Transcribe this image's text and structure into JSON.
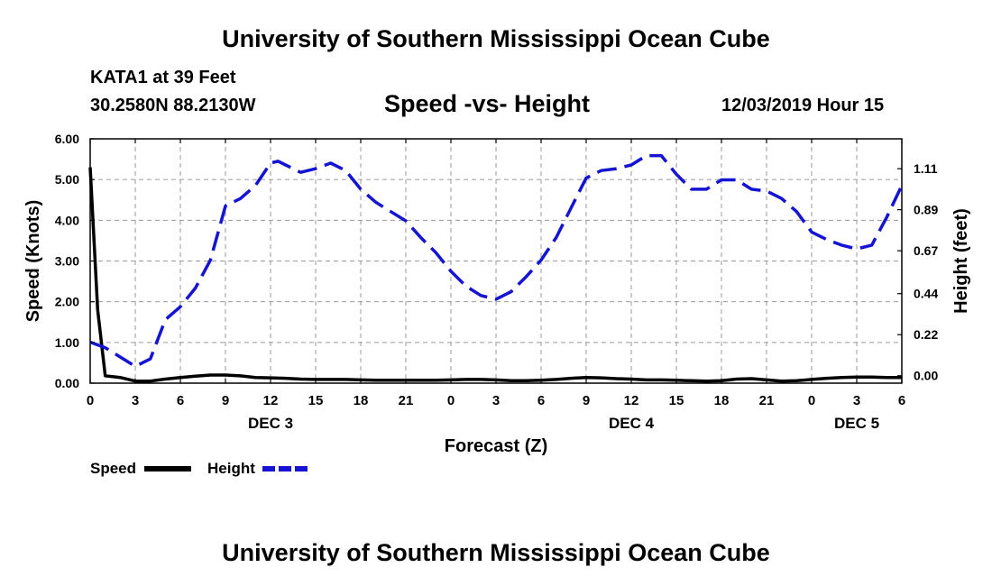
{
  "header": {
    "title": "University of Southern Mississippi Ocean Cube",
    "station": "KATA1 at 39 Feet",
    "coordinates": "30.2580N 88.2130W",
    "datetime": "12/03/2019 Hour 15"
  },
  "footer": {
    "title": "University of Southern Mississippi Ocean Cube"
  },
  "chart_data": {
    "type": "line",
    "title": "Speed -vs- Height",
    "xlabel": "Forecast (Z)",
    "ylabel": "Speed (Knots)",
    "y2label": "Height (feet)",
    "x_unit": "hours from start",
    "xlim": [
      0,
      54
    ],
    "ylim": [
      0,
      6
    ],
    "y2lim": [
      -0.04,
      1.27
    ],
    "x_ticks": [
      0,
      3,
      6,
      9,
      12,
      15,
      18,
      21,
      24,
      27,
      30,
      33,
      36,
      39,
      42,
      45,
      48,
      51,
      54
    ],
    "x_tick_labels": [
      "0",
      "3",
      "6",
      "9",
      "12",
      "15",
      "18",
      "21",
      "0",
      "3",
      "6",
      "9",
      "12",
      "15",
      "18",
      "21",
      "0",
      "3",
      "6"
    ],
    "day_labels": [
      {
        "x": 12,
        "label": "DEC 3"
      },
      {
        "x": 36,
        "label": "DEC 4"
      },
      {
        "x": 51,
        "label": "DEC 5"
      }
    ],
    "y_ticks": [
      0,
      1,
      2,
      3,
      4,
      5,
      6
    ],
    "y_tick_labels": [
      "0.00",
      "1.00",
      "2.00",
      "3.00",
      "4.00",
      "5.00",
      "6.00"
    ],
    "y2_ticks": [
      0,
      0.22,
      0.44,
      0.67,
      0.89,
      1.11
    ],
    "y2_tick_labels": [
      "0.00",
      "0.22",
      "0.44",
      "0.67",
      "0.89",
      "1.11"
    ],
    "series": [
      {
        "name": "Speed",
        "axis": "left",
        "color": "#000000",
        "dash": "solid",
        "x": [
          0,
          0.5,
          1,
          2,
          3,
          4,
          5,
          6,
          7,
          8,
          9,
          10,
          11,
          12,
          13,
          14,
          15,
          16,
          17,
          18,
          19,
          20,
          21,
          22,
          23,
          24,
          25,
          26,
          27,
          28,
          29,
          30,
          31,
          32,
          33,
          34,
          35,
          36,
          37,
          38,
          39,
          40,
          41,
          42,
          43,
          44,
          45,
          46,
          47,
          48,
          49,
          50,
          51,
          52,
          53,
          54
        ],
        "values": [
          5.3,
          1.8,
          0.18,
          0.14,
          0.05,
          0.05,
          0.1,
          0.14,
          0.17,
          0.2,
          0.2,
          0.18,
          0.14,
          0.13,
          0.12,
          0.1,
          0.09,
          0.09,
          0.09,
          0.08,
          0.07,
          0.07,
          0.07,
          0.07,
          0.07,
          0.08,
          0.09,
          0.09,
          0.08,
          0.06,
          0.06,
          0.07,
          0.09,
          0.12,
          0.14,
          0.13,
          0.11,
          0.1,
          0.08,
          0.08,
          0.07,
          0.06,
          0.05,
          0.06,
          0.1,
          0.11,
          0.08,
          0.05,
          0.06,
          0.09,
          0.12,
          0.14,
          0.15,
          0.15,
          0.14,
          0.14
        ]
      },
      {
        "name": "Height",
        "axis": "right",
        "color": "#1414d2",
        "dash": "dashed",
        "x": [
          0,
          1,
          2,
          3,
          4,
          5,
          6,
          7,
          8,
          9,
          10,
          11,
          12,
          12.5,
          13,
          14,
          15,
          16,
          17,
          18,
          19,
          20,
          21,
          22,
          23,
          24,
          25,
          26,
          27,
          28,
          29,
          30,
          31,
          32,
          33,
          34,
          35,
          36,
          37,
          38,
          39,
          40,
          41,
          42,
          43,
          44,
          45,
          46,
          47,
          48,
          49,
          50,
          51,
          52,
          53,
          54
        ],
        "values": [
          0.18,
          0.15,
          0.1,
          0.05,
          0.09,
          0.3,
          0.37,
          0.47,
          0.62,
          0.91,
          0.95,
          1.02,
          1.14,
          1.15,
          1.13,
          1.09,
          1.11,
          1.14,
          1.1,
          1.0,
          0.93,
          0.88,
          0.83,
          0.74,
          0.66,
          0.56,
          0.48,
          0.43,
          0.41,
          0.45,
          0.53,
          0.62,
          0.74,
          0.9,
          1.06,
          1.1,
          1.11,
          1.13,
          1.18,
          1.18,
          1.08,
          1.0,
          1.0,
          1.05,
          1.05,
          1.0,
          0.99,
          0.95,
          0.88,
          0.77,
          0.73,
          0.7,
          0.68,
          0.7,
          0.85,
          1.02
        ]
      }
    ],
    "legend": [
      {
        "label": "Speed",
        "color": "#000000",
        "dash": "solid"
      },
      {
        "label": "Height",
        "color": "#1414d2",
        "dash": "dashed"
      }
    ],
    "legend_position": "bottom-left"
  }
}
